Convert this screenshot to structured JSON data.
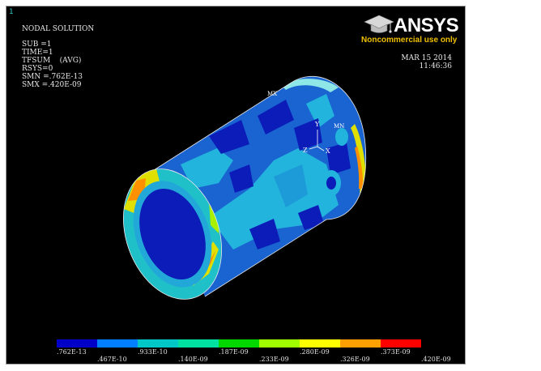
{
  "window_number": "1",
  "solution": {
    "title": "NODAL SOLUTION",
    "sub": "SUB =1",
    "time": "TIME=1",
    "item": "TFSUM    (AVG)",
    "rsys": "RSYS=0",
    "smn": "SMN =.762E-13",
    "smx": "SMX =.420E-09"
  },
  "branding": {
    "logo_text": "ANSYS",
    "logo_subtitle": "Noncommercial use only"
  },
  "timestamp": {
    "date": "MAR 15 2014",
    "time": "11:46:36"
  },
  "markers": {
    "max": "MX",
    "min": "MN"
  },
  "triad": {
    "x": "X",
    "y": "Y",
    "z": "Z"
  },
  "legend": {
    "colors": [
      "#0000c8",
      "#0080ff",
      "#00c8c8",
      "#00e0a0",
      "#00d800",
      "#a0ff00",
      "#ffff00",
      "#ffa000",
      "#ff0000"
    ],
    "labels_top": [
      ".762E-13",
      ".933E-10",
      ".187E-09",
      ".280E-09",
      ".373E-09"
    ],
    "labels_bottom": [
      ".467E-10",
      ".140E-09",
      ".233E-09",
      ".326E-09",
      ".420E-09"
    ]
  }
}
